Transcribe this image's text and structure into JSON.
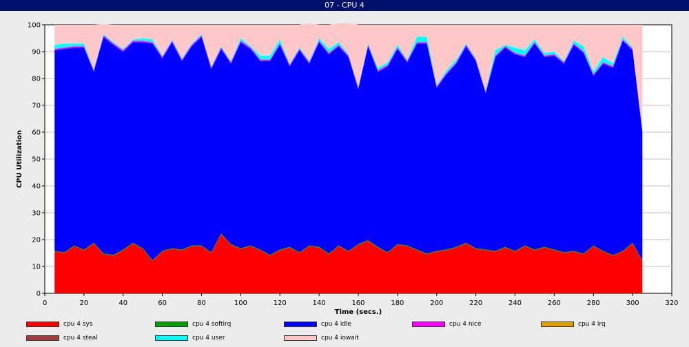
{
  "window": {
    "title": "07 - CPU 4"
  },
  "chart_data": {
    "type": "area",
    "stacked": true,
    "xlabel": "Time (secs.)",
    "ylabel": "CPU Utilization",
    "xlim": [
      0,
      320
    ],
    "ylim": [
      0,
      100
    ],
    "xticks": [
      0,
      20,
      40,
      60,
      80,
      100,
      120,
      140,
      160,
      180,
      200,
      220,
      240,
      260,
      280,
      300,
      320
    ],
    "yticks": [
      0,
      10,
      20,
      30,
      40,
      50,
      60,
      70,
      80,
      90,
      100
    ],
    "grid": "horizontal",
    "legend_position": "bottom",
    "x": [
      5,
      10,
      15,
      20,
      25,
      30,
      35,
      40,
      45,
      50,
      55,
      60,
      65,
      70,
      75,
      80,
      85,
      90,
      95,
      100,
      105,
      110,
      115,
      120,
      125,
      130,
      135,
      140,
      145,
      150,
      155,
      160,
      165,
      170,
      175,
      180,
      185,
      190,
      195,
      200,
      205,
      210,
      215,
      220,
      225,
      230,
      235,
      240,
      245,
      250,
      255,
      260,
      265,
      270,
      275,
      280,
      285,
      290,
      295,
      300,
      305
    ],
    "series": [
      {
        "name": "cpu 4 sys",
        "color": "#ff0000",
        "values": [
          15.5,
          15.0,
          17.5,
          16.0,
          18.5,
          14.5,
          14.0,
          16.0,
          18.5,
          16.5,
          12.0,
          15.5,
          16.5,
          16.0,
          17.5,
          17.5,
          15.0,
          22.0,
          18.0,
          16.5,
          17.5,
          16.0,
          14.0,
          16.0,
          17.0,
          15.0,
          17.5,
          17.0,
          14.5,
          17.5,
          15.5,
          18.0,
          19.5,
          17.0,
          15.0,
          18.0,
          17.5,
          16.0,
          14.5,
          15.5,
          16.0,
          17.0,
          18.5,
          16.5,
          16.0,
          15.5,
          17.0,
          15.5,
          17.5,
          16.0,
          17.0,
          16.0,
          15.0,
          15.5,
          14.5,
          17.5,
          15.5,
          14.0,
          15.5,
          18.5,
          12.0
        ]
      },
      {
        "name": "cpu 4 softirq",
        "color": "#009e00",
        "values": [
          0.3,
          0.3,
          0.3,
          0.3,
          0.3,
          0.3,
          0.3,
          0.3,
          0.3,
          0.3,
          0.3,
          0.3,
          0.3,
          0.3,
          0.3,
          0.3,
          0.3,
          0.3,
          0.3,
          0.3,
          0.3,
          0.3,
          0.3,
          0.3,
          0.3,
          0.3,
          0.3,
          0.3,
          0.3,
          0.3,
          0.3,
          0.3,
          0.3,
          0.3,
          0.3,
          0.3,
          0.3,
          0.3,
          0.3,
          0.3,
          0.3,
          0.3,
          0.3,
          0.3,
          0.3,
          0.3,
          0.3,
          0.3,
          0.3,
          0.3,
          0.3,
          0.3,
          0.3,
          0.3,
          0.3,
          0.3,
          0.3,
          0.3,
          0.3,
          0.3,
          0.3
        ]
      },
      {
        "name": "cpu 4 idle",
        "color": "#0000ff",
        "values": [
          74.7,
          75.7,
          73.7,
          75.2,
          63.7,
          80.7,
          78.2,
          73.7,
          74.7,
          76.7,
          80.7,
          71.7,
          76.7,
          70.2,
          74.2,
          77.7,
          68.2,
          68.7,
          67.2,
          76.7,
          73.2,
          70.2,
          72.2,
          76.2,
          67.2,
          75.2,
          67.7,
          76.2,
          74.2,
          74.2,
          72.2,
          57.7,
          72.2,
          65.2,
          69.2,
          72.7,
          68.2,
          76.7,
          78.2,
          60.7,
          65.2,
          68.2,
          73.2,
          69.7,
          58.2,
          72.2,
          74.2,
          73.2,
          70.2,
          76.7,
          70.7,
          72.2,
          70.2,
          76.7,
          74.7,
          63.2,
          69.7,
          69.7,
          78.2,
          71.7,
          47.7
        ]
      },
      {
        "name": "cpu 4 nice",
        "color": "#ff00ff",
        "values": [
          0.5,
          0.5,
          0.5,
          0.5,
          0.5,
          0.5,
          0.5,
          0.5,
          0.5,
          0.5,
          0.5,
          0.5,
          0.5,
          0.5,
          0.5,
          0.5,
          0.5,
          0.5,
          0.5,
          0.5,
          0.5,
          0.5,
          0.5,
          0.5,
          0.5,
          0.5,
          0.5,
          0.5,
          0.5,
          0.5,
          0.5,
          0.5,
          0.5,
          0.5,
          0.5,
          0.5,
          0.5,
          0.5,
          0.5,
          0.5,
          0.5,
          0.5,
          0.5,
          0.5,
          0.5,
          0.5,
          0.5,
          0.5,
          0.5,
          0.5,
          0.5,
          0.5,
          0.5,
          0.5,
          0.5,
          0.5,
          0.5,
          0.5,
          0.5,
          0.5,
          0.5
        ]
      },
      {
        "name": "cpu 4 irq",
        "color": "#e0a000",
        "values": [
          0,
          0,
          0,
          0,
          0,
          0,
          0,
          0,
          0,
          0,
          0,
          0,
          0,
          0,
          0,
          0,
          0,
          0,
          0,
          0,
          0,
          0,
          0,
          0,
          0,
          0,
          0,
          0,
          0,
          0,
          0,
          0,
          0,
          0,
          0,
          0,
          0,
          0,
          0,
          0,
          0,
          0,
          0,
          0,
          0,
          0,
          0,
          0,
          0,
          0,
          0,
          0,
          0,
          0,
          0,
          0,
          0,
          0,
          0,
          0,
          0
        ]
      },
      {
        "name": "cpu 4 steal",
        "color": "#a03c3c",
        "values": [
          0,
          0,
          0,
          0,
          0,
          0,
          0,
          0,
          0,
          0,
          0,
          0,
          0,
          0,
          0,
          0,
          0,
          0,
          0,
          0,
          0,
          0,
          0,
          0,
          0,
          0,
          0,
          0,
          0,
          0,
          0,
          0,
          0,
          0,
          0,
          0,
          0,
          0,
          0,
          0,
          0,
          0,
          0,
          0,
          0,
          0,
          0,
          0,
          0,
          0,
          0,
          0,
          0,
          0,
          0,
          0,
          0,
          0,
          0,
          0,
          0
        ]
      },
      {
        "name": "cpu 4 user",
        "color": "#00ffff",
        "values": [
          1.5,
          1.5,
          1.0,
          1.0,
          0.5,
          0.5,
          0.5,
          0.5,
          0.5,
          1.0,
          1.0,
          0.5,
          0.5,
          0.5,
          0.5,
          0.5,
          0.5,
          0.5,
          0.5,
          1.0,
          0.5,
          1.5,
          1.5,
          1.5,
          0.5,
          0.5,
          0.5,
          1.0,
          1.5,
          1.0,
          0.5,
          0.5,
          0.5,
          1.0,
          1.0,
          1.0,
          0.5,
          2.0,
          2.0,
          0.5,
          1.0,
          1.0,
          0.5,
          0.5,
          0.5,
          2.0,
          0.5,
          2.0,
          2.0,
          1.0,
          1.0,
          1.0,
          0.5,
          1.0,
          2.0,
          1.0,
          2.0,
          1.0,
          1.0,
          0.5,
          0.5
        ]
      },
      {
        "name": "cpu 4 iowait",
        "color": "#ffc8c8",
        "values": [
          7.5,
          7.0,
          7.0,
          7.0,
          16.5,
          3.7,
          6.5,
          9.0,
          5.5,
          5.0,
          5.5,
          11.5,
          5.5,
          12.5,
          7.0,
          3.5,
          15.5,
          8.0,
          13.5,
          5.0,
          8.0,
          11.5,
          11.5,
          5.5,
          14.5,
          8.5,
          14.0,
          5.0,
          9.0,
          7.0,
          11.5,
          23.0,
          7.0,
          16.0,
          14.0,
          7.5,
          13.0,
          4.5,
          4.5,
          22.5,
          17.0,
          13.0,
          7.0,
          12.5,
          24.5,
          9.5,
          7.5,
          8.5,
          9.5,
          5.5,
          10.5,
          10.0,
          13.5,
          6.0,
          8.0,
          17.5,
          12.0,
          14.5,
          4.5,
          8.5,
          39.0
        ]
      }
    ]
  }
}
